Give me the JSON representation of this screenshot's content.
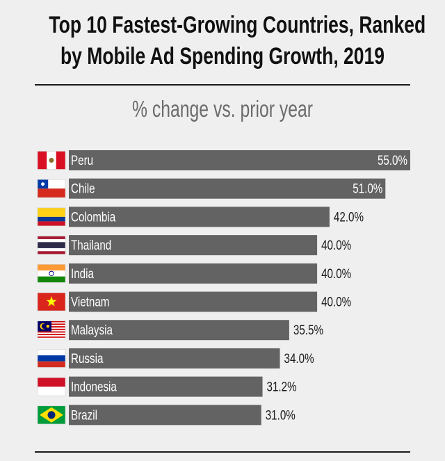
{
  "chart_data": {
    "type": "bar",
    "orientation": "horizontal",
    "title_lines": [
      "Top 10 Fastest-Growing Countries, Ranked",
      "by Mobile Ad Spending Growth, 2019"
    ],
    "subtitle": "% change vs. prior year",
    "categories": [
      "Peru",
      "Chile",
      "Colombia",
      "Thailand",
      "India",
      "Vietnam",
      "Malaysia",
      "Russia",
      "Indonesia",
      "Brazil"
    ],
    "values": [
      55.0,
      51.0,
      42.0,
      40.0,
      40.0,
      40.0,
      35.5,
      34.0,
      31.2,
      31.0
    ],
    "value_labels": [
      "55.0%",
      "51.0%",
      "42.0%",
      "40.0%",
      "40.0%",
      "40.0%",
      "35.5%",
      "34.0%",
      "31.2%",
      "31.0%"
    ],
    "xlim": [
      0,
      55
    ],
    "grid": false,
    "legend": "none",
    "bar_color": "#636363",
    "flags": [
      "peru-flag",
      "chile-flag",
      "colombia-flag",
      "thailand-flag",
      "india-flag",
      "vietnam-flag",
      "malaysia-flag",
      "russia-flag",
      "indonesia-flag",
      "brazil-flag"
    ]
  }
}
